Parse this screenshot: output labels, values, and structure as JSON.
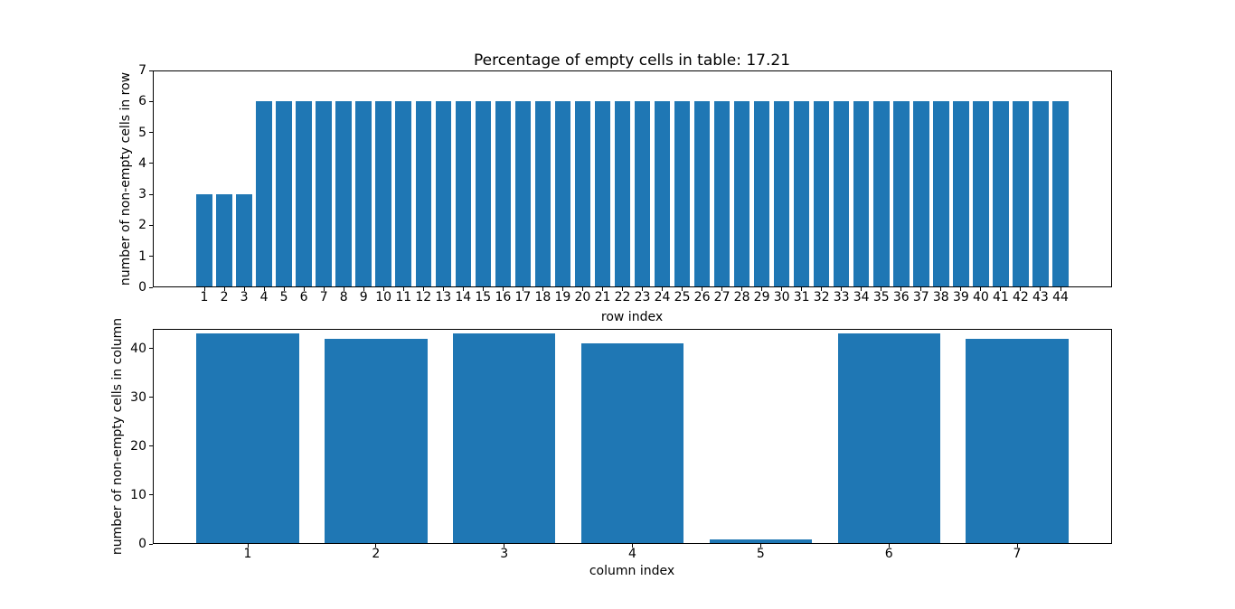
{
  "figure": {
    "background": "#ffffff",
    "spine_color": "#000000",
    "text_color": "#000000",
    "bar_color": "#1f77b4"
  },
  "chart_data": [
    {
      "type": "bar",
      "title": "Percentage of empty cells in table: 17.21",
      "xlabel": "row index",
      "ylabel": "number of non-empty cells in row",
      "categories": [
        1,
        2,
        3,
        4,
        5,
        6,
        7,
        8,
        9,
        10,
        11,
        12,
        13,
        14,
        15,
        16,
        17,
        18,
        19,
        20,
        21,
        22,
        23,
        24,
        25,
        26,
        27,
        28,
        29,
        30,
        31,
        32,
        33,
        34,
        35,
        36,
        37,
        38,
        39,
        40,
        41,
        42,
        43,
        44
      ],
      "values": [
        3,
        3,
        3,
        6,
        6,
        6,
        6,
        6,
        6,
        6,
        6,
        6,
        6,
        6,
        6,
        6,
        6,
        6,
        6,
        6,
        6,
        6,
        6,
        6,
        6,
        6,
        6,
        6,
        6,
        6,
        6,
        6,
        6,
        6,
        6,
        6,
        6,
        6,
        6,
        6,
        6,
        6,
        6,
        6
      ],
      "xlim": [
        -1.59,
        46.59
      ],
      "ylim": [
        0,
        7
      ],
      "yticks": [
        0,
        1,
        2,
        3,
        4,
        5,
        6,
        7
      ],
      "bar_width_units": 0.8,
      "bar_color": "#1f77b4",
      "grid": false,
      "legend": null
    },
    {
      "type": "bar",
      "title": "",
      "xlabel": "column index",
      "ylabel": "number of non-empty cells in column",
      "categories": [
        1,
        2,
        3,
        4,
        5,
        6,
        7
      ],
      "values": [
        43,
        42,
        43,
        41,
        1,
        43,
        42
      ],
      "xlim": [
        0.26,
        7.74
      ],
      "ylim": [
        0,
        44
      ],
      "yticks": [
        0,
        10,
        20,
        30,
        40
      ],
      "bar_width_units": 0.8,
      "bar_color": "#1f77b4",
      "grid": false,
      "legend": null
    }
  ]
}
